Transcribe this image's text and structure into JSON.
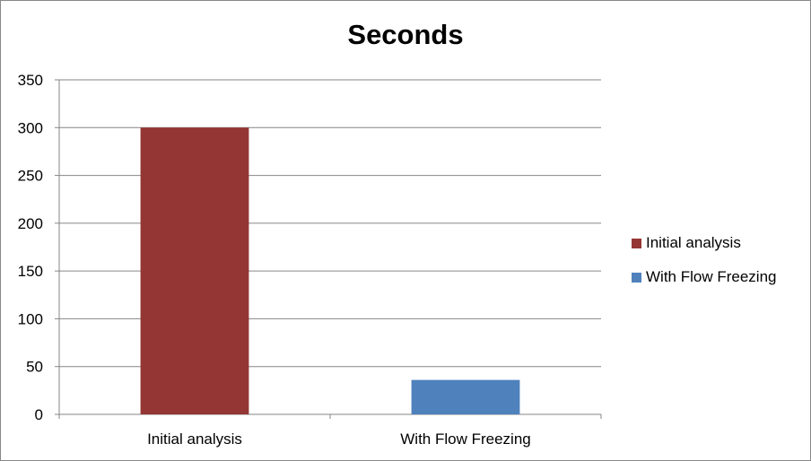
{
  "chart_data": {
    "type": "bar",
    "title": "Seconds",
    "categories": [
      "Initial analysis",
      "With Flow Freezing"
    ],
    "values": [
      300,
      36
    ],
    "colors": [
      "#943634",
      "#4f81bd"
    ],
    "ylim": [
      0,
      350
    ],
    "yticks": [
      0,
      50,
      100,
      150,
      200,
      250,
      300,
      350
    ],
    "grid": true,
    "legend_position": "right",
    "legend": [
      {
        "label": "Initial analysis",
        "color": "#943634"
      },
      {
        "label": "With Flow Freezing",
        "color": "#4f81bd"
      }
    ]
  }
}
